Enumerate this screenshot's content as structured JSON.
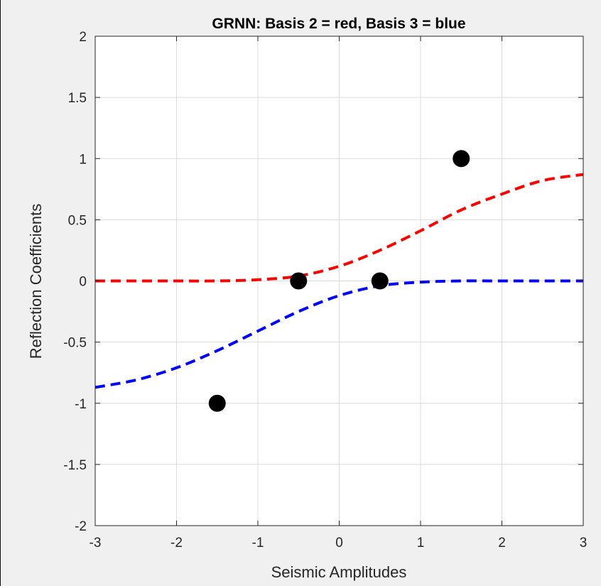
{
  "chart_data": {
    "type": "line",
    "title": "GRNN: Basis 2 = red, Basis 3 = blue",
    "xlabel": "Seismic Amplitudes",
    "ylabel": "Reflection Coefficients",
    "xlim": [
      -3,
      3
    ],
    "ylim": [
      -2,
      2
    ],
    "xticks": [
      "-3",
      "-2",
      "-1",
      "0",
      "1",
      "2",
      "3"
    ],
    "yticks": [
      "2",
      "1.5",
      "1",
      "0.5",
      "0",
      "-0.5",
      "-1",
      "-1.5",
      "-2"
    ],
    "xtick_values": [
      -3,
      -2,
      -1,
      0,
      1,
      2,
      3
    ],
    "ytick_values": [
      2,
      1.5,
      1,
      0.5,
      0,
      -0.5,
      -1,
      -1.5,
      -2
    ],
    "grid": true,
    "series": [
      {
        "color": "#ff0000",
        "style": "dashed",
        "x": [
          -3,
          -2.5,
          -2,
          -1.5,
          -1,
          -0.5,
          0,
          0.5,
          1,
          1.5,
          2,
          2.5,
          3
        ],
        "y": [
          0.0,
          0.0,
          0.0,
          0.0,
          0.01,
          0.04,
          0.12,
          0.25,
          0.41,
          0.58,
          0.71,
          0.82,
          0.87
        ]
      },
      {
        "color": "#0000ff",
        "style": "dashed",
        "x": [
          -3,
          -2.5,
          -2,
          -1.5,
          -1,
          -0.5,
          0,
          0.5,
          1,
          1.5,
          2,
          2.5,
          3
        ],
        "y": [
          -0.87,
          -0.81,
          -0.71,
          -0.57,
          -0.41,
          -0.25,
          -0.12,
          -0.04,
          -0.01,
          0.0,
          0.0,
          0.0,
          0.0
        ]
      },
      {
        "type": "scatter",
        "color": "#000000",
        "x": [
          -1.5,
          -0.5,
          0.5,
          1.5
        ],
        "y": [
          -1,
          0,
          0,
          1
        ]
      }
    ]
  }
}
